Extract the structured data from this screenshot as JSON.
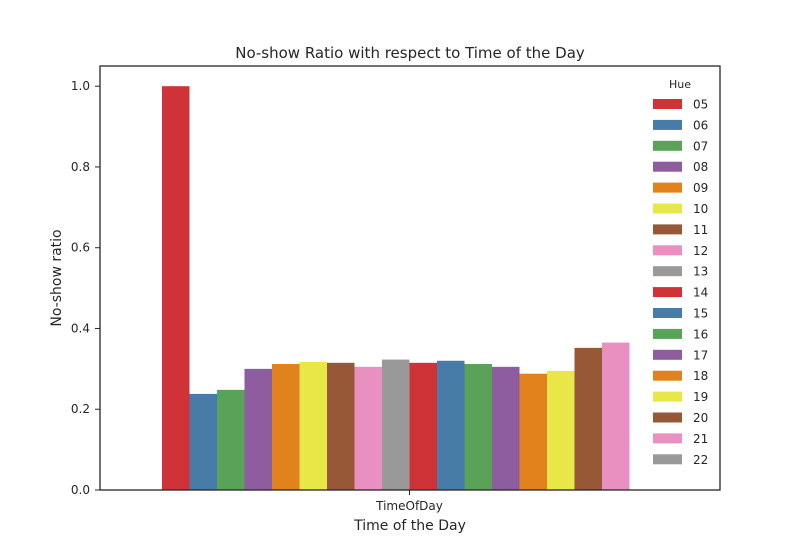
{
  "chart_data": {
    "type": "bar",
    "title": "No-show Ratio with respect to Time of the Day",
    "xlabel": "Time of the Day",
    "ylabel": "No-show ratio",
    "categories": [
      "TimeOfDay"
    ],
    "ylim": [
      0,
      1.05
    ],
    "yticks": [
      "0.0",
      "0.2",
      "0.4",
      "0.6",
      "0.8",
      "1.0"
    ],
    "legend": {
      "title": "Hue",
      "placement": "top-right"
    },
    "series": [
      {
        "name": "05",
        "values": [
          1.0
        ],
        "color": "#d03337"
      },
      {
        "name": "06",
        "values": [
          0.238
        ],
        "color": "#477ca8"
      },
      {
        "name": "07",
        "values": [
          0.248
        ],
        "color": "#59a257"
      },
      {
        "name": "08",
        "values": [
          0.3
        ],
        "color": "#8d5d9f"
      },
      {
        "name": "09",
        "values": [
          0.312
        ],
        "color": "#e2821c"
      },
      {
        "name": "10",
        "values": [
          0.317
        ],
        "color": "#e8e748"
      },
      {
        "name": "11",
        "values": [
          0.315
        ],
        "color": "#965836"
      },
      {
        "name": "12",
        "values": [
          0.305
        ],
        "color": "#e890c0"
      },
      {
        "name": "13",
        "values": [
          0.323
        ],
        "color": "#999999"
      },
      {
        "name": "14",
        "values": [
          0.315
        ],
        "color": "#d03337"
      },
      {
        "name": "15",
        "values": [
          0.32
        ],
        "color": "#477ca8"
      },
      {
        "name": "16",
        "values": [
          0.312
        ],
        "color": "#59a257"
      },
      {
        "name": "17",
        "values": [
          0.305
        ],
        "color": "#8d5d9f"
      },
      {
        "name": "18",
        "values": [
          0.288
        ],
        "color": "#e2821c"
      },
      {
        "name": "19",
        "values": [
          0.295
        ],
        "color": "#e8e748"
      },
      {
        "name": "20",
        "values": [
          0.352
        ],
        "color": "#965836"
      },
      {
        "name": "21",
        "values": [
          0.365
        ],
        "color": "#e890c0"
      },
      {
        "name": "22",
        "values": [
          0.0
        ],
        "color": "#999999"
      }
    ]
  }
}
